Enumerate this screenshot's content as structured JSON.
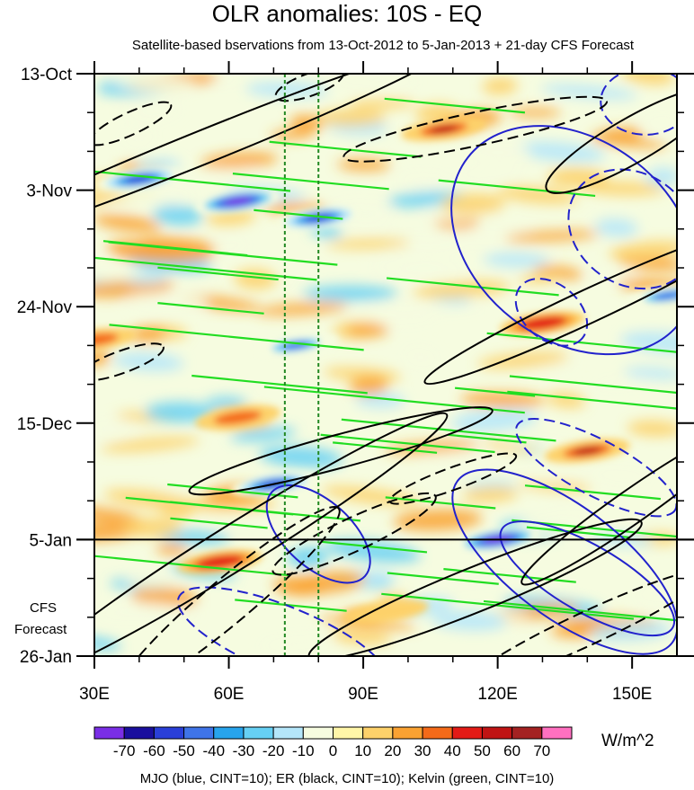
{
  "title": "OLR anomalies: 10S - EQ",
  "subtitle": "Satellite-based bservations from 13-Oct-2012 to 5-Jan-2013 + 21-day CFS Forecast",
  "forecast_label": [
    "CFS",
    "Forecast"
  ],
  "units": "W/m^2",
  "footer": "MJO (blue, CINT=10); ER (black, CINT=10); Kelvin (green, CINT=10)",
  "colors": {
    "mjo": "#2222cc",
    "er": "#000000",
    "kelvin": "#22dd22",
    "ref_lines": "#228822"
  },
  "chart_data": {
    "type": "heatmap",
    "xlabel": "Longitude",
    "ylabel": "Date",
    "x_range": [
      30,
      160
    ],
    "y_range_days": [
      0,
      105
    ],
    "x_ticks": [
      {
        "value": 30,
        "label": "30E"
      },
      {
        "value": 60,
        "label": "60E"
      },
      {
        "value": 90,
        "label": "90E"
      },
      {
        "value": 120,
        "label": "120E"
      },
      {
        "value": 150,
        "label": "150E"
      }
    ],
    "y_ticks": [
      {
        "day": 0,
        "label": "13-Oct"
      },
      {
        "day": 21,
        "label": "3-Nov"
      },
      {
        "day": 42,
        "label": "24-Nov"
      },
      {
        "day": 63,
        "label": "15-Dec"
      },
      {
        "day": 84,
        "label": "5-Jan"
      },
      {
        "day": 105,
        "label": "26-Jan"
      }
    ],
    "forecast_start_day": 84,
    "reference_longitudes": [
      72.5,
      80
    ],
    "colorbar": {
      "labels": [
        "-70",
        "-60",
        "-50",
        "-40",
        "-30",
        "-20",
        "-10",
        "0",
        "10",
        "20",
        "30",
        "40",
        "50",
        "60",
        "70"
      ],
      "colors": [
        "#7a2ee6",
        "#1a0f9e",
        "#2a3fd8",
        "#3f74e8",
        "#27a4ec",
        "#66d0f4",
        "#b4e6fa",
        "#f6fce0",
        "#fff6a8",
        "#fdd16a",
        "#faa232",
        "#f46a19",
        "#e31b16",
        "#c01414",
        "#a42222",
        "#ff70c0"
      ]
    },
    "anomaly_features": [
      {
        "type": "negative",
        "lon": 40,
        "day": 19,
        "value": -60
      },
      {
        "type": "negative",
        "lon": 62,
        "day": 23,
        "value": -70
      },
      {
        "type": "negative",
        "lon": 80,
        "day": 26,
        "value": -60
      },
      {
        "type": "negative",
        "lon": 75,
        "day": 49,
        "value": -50
      },
      {
        "type": "negative",
        "lon": 70,
        "day": 74,
        "value": -60
      },
      {
        "type": "negative",
        "lon": 120,
        "day": 84,
        "value": -70
      },
      {
        "type": "negative",
        "lon": 158,
        "day": 40,
        "value": -50
      },
      {
        "type": "positive",
        "lon": 108,
        "day": 10,
        "value": 50
      },
      {
        "type": "positive",
        "lon": 130,
        "day": 45,
        "value": 40
      },
      {
        "type": "positive",
        "lon": 140,
        "day": 68,
        "value": 50
      },
      {
        "type": "positive",
        "lon": 58,
        "day": 88,
        "value": 40
      },
      {
        "type": "positive",
        "lon": 62,
        "day": 62,
        "value": 30
      },
      {
        "type": "positive",
        "lon": 30,
        "day": 48,
        "value": 30
      },
      {
        "type": "positive",
        "lon": 95,
        "day": 97,
        "value": 10
      }
    ],
    "contour_features": [
      {
        "wave": "MJO",
        "sign": "positive",
        "lon": 137,
        "day": 30,
        "len_lon": 30,
        "len_day": 18,
        "angle": 38
      },
      {
        "wave": "MJO",
        "sign": "negative",
        "lon": 150,
        "day": 28,
        "len_lon": 15,
        "len_day": 10,
        "angle": 35
      },
      {
        "wave": "MJO",
        "sign": "negative",
        "lon": 132,
        "day": 43,
        "len_lon": 9,
        "len_day": 5,
        "angle": 40
      },
      {
        "wave": "MJO",
        "sign": "negative",
        "lon": 153,
        "day": 5,
        "len_lon": 10,
        "len_day": 6,
        "angle": 0
      },
      {
        "wave": "MJO",
        "sign": "positive",
        "lon": 80,
        "day": 83,
        "len_lon": 14,
        "len_day": 6,
        "angle": 42
      },
      {
        "wave": "MJO",
        "sign": "positive",
        "lon": 135,
        "day": 88,
        "len_lon": 30,
        "len_day": 10,
        "angle": 37
      },
      {
        "wave": "MJO",
        "sign": "positive",
        "lon": 140,
        "day": 91,
        "len_lon": 22,
        "len_day": 6,
        "angle": 30
      },
      {
        "wave": "MJO",
        "sign": "negative",
        "lon": 142,
        "day": 71,
        "len_lon": 20,
        "len_day": 5,
        "angle": 28
      },
      {
        "wave": "MJO",
        "sign": "negative",
        "lon": 72,
        "day": 102,
        "len_lon": 25,
        "len_day": 6,
        "angle": 22
      },
      {
        "wave": "ER",
        "sign": "positive",
        "lon": 55,
        "day": 13,
        "len_lon": 60,
        "len_day": 3,
        "angle": -22
      },
      {
        "wave": "ER",
        "sign": "negative",
        "lon": 78,
        "day": 2,
        "len_lon": 8,
        "len_day": 2,
        "angle": -20
      },
      {
        "wave": "ER",
        "sign": "negative",
        "lon": 38,
        "day": 9,
        "len_lon": 10,
        "len_day": 2,
        "angle": -25
      },
      {
        "wave": "ER",
        "sign": "negative",
        "lon": 115,
        "day": 10,
        "len_lon": 30,
        "len_day": 3,
        "angle": -12
      },
      {
        "wave": "ER",
        "sign": "positive",
        "lon": 150,
        "day": 12,
        "len_lon": 22,
        "len_day": 4,
        "angle": -30
      },
      {
        "wave": "ER",
        "sign": "positive",
        "lon": 140,
        "day": 42,
        "len_lon": 40,
        "len_day": 3,
        "angle": -25
      },
      {
        "wave": "ER",
        "sign": "positive",
        "lon": 62,
        "day": 85,
        "len_lon": 55,
        "len_day": 4,
        "angle": -32
      },
      {
        "wave": "ER",
        "sign": "positive",
        "lon": 85,
        "day": 68,
        "len_lon": 35,
        "len_day": 3,
        "angle": -15
      },
      {
        "wave": "ER",
        "sign": "negative",
        "lon": 60,
        "day": 95,
        "len_lon": 32,
        "len_day": 4,
        "angle": -40
      },
      {
        "wave": "ER",
        "sign": "negative",
        "lon": 88,
        "day": 83,
        "len_lon": 20,
        "len_day": 3,
        "angle": -25
      },
      {
        "wave": "ER",
        "sign": "negative",
        "lon": 110,
        "day": 73,
        "len_lon": 15,
        "len_day": 2,
        "angle": -20
      },
      {
        "wave": "ER",
        "sign": "positive",
        "lon": 150,
        "day": 78,
        "len_lon": 30,
        "len_day": 3,
        "angle": -35
      },
      {
        "wave": "ER",
        "sign": "positive",
        "lon": 115,
        "day": 93,
        "len_lon": 40,
        "len_day": 4,
        "angle": -22
      },
      {
        "wave": "ER",
        "sign": "negative",
        "lon": 140,
        "day": 100,
        "len_lon": 30,
        "len_day": 3,
        "angle": -25
      },
      {
        "wave": "ER",
        "sign": "negative",
        "lon": 36,
        "day": 52,
        "len_lon": 10,
        "len_day": 2,
        "angle": -20
      }
    ]
  }
}
